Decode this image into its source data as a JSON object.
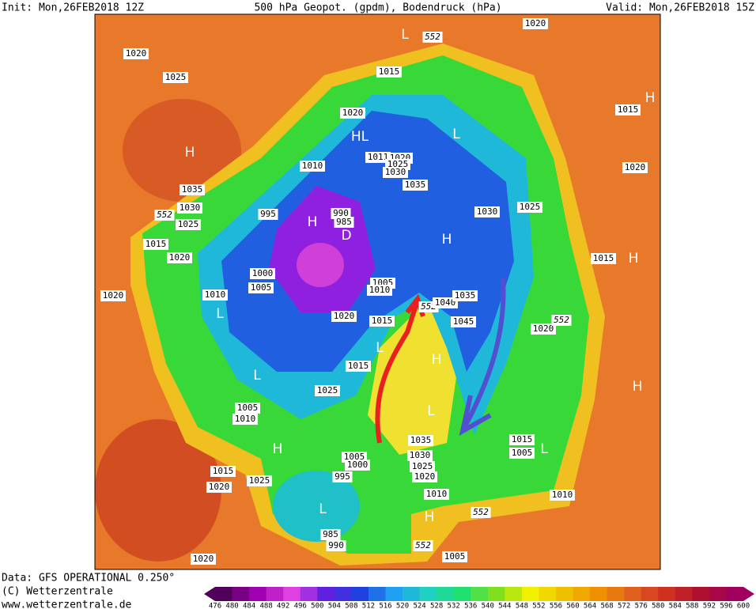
{
  "header": {
    "init": "Init: Mon,26FEB2018 12Z",
    "title": "500 hPa Geopot. (gpdm), Bodendruck (hPa)",
    "valid": "Valid: Mon,26FEB2018 15Z"
  },
  "footer": {
    "source": "Data: GFS OPERATIONAL 0.250°",
    "copyright": "(C) Wetterzentrale",
    "url": "www.wetterzentrale.de"
  },
  "colorbar": {
    "labels": [
      476,
      480,
      484,
      488,
      492,
      496,
      500,
      504,
      508,
      512,
      516,
      520,
      524,
      528,
      532,
      536,
      540,
      544,
      548,
      552,
      556,
      560,
      564,
      568,
      572,
      576,
      580,
      584,
      588,
      592,
      596,
      600
    ]
  },
  "map_labels": [
    "1020",
    "1025",
    "H",
    "1035",
    "1030",
    "552",
    "1025",
    "1015",
    "1020",
    "1020",
    "1010",
    "L",
    "1005",
    "1000",
    "995",
    "1010",
    "H",
    "990",
    "985",
    "D",
    "L",
    "552",
    "1020",
    "1015",
    "1020",
    "HL",
    "1011",
    "1020",
    "1025",
    "1030",
    "1035",
    "L",
    "1030",
    "1025",
    "H",
    "1005",
    "1010",
    "552",
    "1040",
    "1035",
    "1045",
    "1020",
    "1015",
    "L",
    "1015",
    "H",
    "L",
    "1025",
    "1005",
    "1010",
    "L",
    "1035",
    "1030",
    "1025",
    "1020",
    "H",
    "1005",
    "1000",
    "995",
    "1015",
    "1025",
    "1020",
    "L",
    "985",
    "990",
    "552",
    "1005",
    "1010",
    "552",
    "H",
    "1015",
    "1005",
    "L",
    "1010",
    "1020",
    "552",
    "1015",
    "H",
    "1020",
    "1015",
    "H",
    "H",
    "1020"
  ]
}
